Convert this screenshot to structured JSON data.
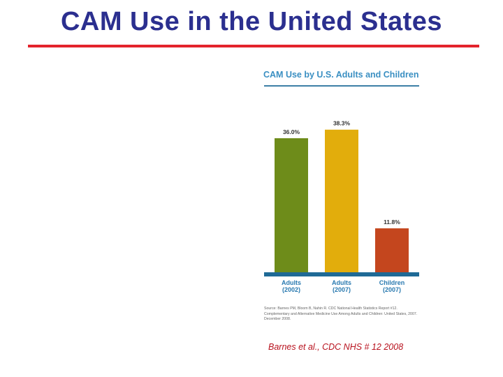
{
  "slide": {
    "title": "CAM Use in the United States",
    "citation": "Barnes et al., CDC NHS # 12 2008"
  },
  "colors": {
    "title": "#2b2f8f",
    "rule": "#e3232c",
    "baseline": "#1f6a96",
    "figure_title": "#3a8fc2",
    "citation": "#b8121e"
  },
  "chart_data": {
    "type": "bar",
    "title": "CAM Use by U.S. Adults and Children",
    "categories": [
      "Adults (2002)",
      "Adults (2007)",
      "Children (2007)"
    ],
    "category_lines": [
      [
        "Adults",
        "(2002)"
      ],
      [
        "Adults",
        "(2007)"
      ],
      [
        "Children",
        "(2007)"
      ]
    ],
    "values": [
      36.0,
      38.3,
      11.8
    ],
    "data_labels": [
      "36.0%",
      "38.3%",
      "11.8%"
    ],
    "bar_colors": [
      "#6e8c1a",
      "#e2ad0c",
      "#c4461e"
    ],
    "ylim": [
      0,
      45
    ],
    "grid": false,
    "legend": "none",
    "source": "Source: Barnes PM, Bloom B, Nahin R. CDC National Health Statistics Report #12. Complementary and Alternative Medicine Use Among Adults and Children: United States, 2007. December 2008."
  }
}
